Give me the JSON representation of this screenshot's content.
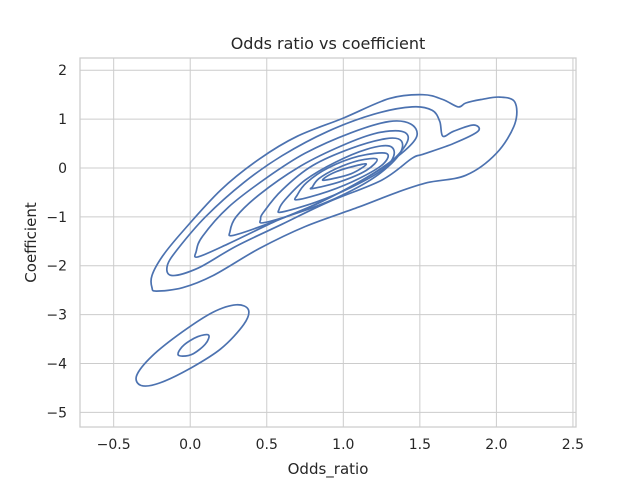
{
  "chart_data": {
    "type": "kde-contour",
    "title": "Odds ratio vs coefficient",
    "xlabel": "Odds_ratio",
    "ylabel": "Coefficient",
    "xlim": [
      -0.72,
      2.52
    ],
    "ylim": [
      -5.3,
      2.25
    ],
    "x_ticks": [
      -0.5,
      0.0,
      0.5,
      1.0,
      1.5,
      2.0,
      2.5
    ],
    "x_tick_labels": [
      "−0.5",
      "0.0",
      "0.5",
      "1.0",
      "1.5",
      "2.0",
      "2.5"
    ],
    "y_ticks": [
      2,
      1,
      0,
      -1,
      -2,
      -3,
      -4,
      -5
    ],
    "y_tick_labels": [
      "2",
      "1",
      "0",
      "−1",
      "−2",
      "−3",
      "−4",
      "−5"
    ],
    "grid": true,
    "line_color": "#4c72b0",
    "contours": [
      {
        "level": 1,
        "points": [
          [
            -0.22,
            -2.52
          ],
          [
            -0.05,
            -2.45
          ],
          [
            0.15,
            -2.2
          ],
          [
            0.45,
            -1.65
          ],
          [
            0.75,
            -1.2
          ],
          [
            1.1,
            -0.8
          ],
          [
            1.35,
            -0.5
          ],
          [
            1.55,
            -0.3
          ],
          [
            1.8,
            -0.15
          ],
          [
            2.0,
            0.3
          ],
          [
            2.12,
            0.9
          ],
          [
            2.12,
            1.35
          ],
          [
            2.02,
            1.45
          ],
          [
            1.9,
            1.4
          ],
          [
            1.8,
            1.33
          ],
          [
            1.75,
            1.25
          ],
          [
            1.65,
            1.4
          ],
          [
            1.52,
            1.5
          ],
          [
            1.3,
            1.42
          ],
          [
            1.0,
            1.02
          ],
          [
            0.7,
            0.65
          ],
          [
            0.45,
            0.18
          ],
          [
            0.2,
            -0.45
          ],
          [
            -0.05,
            -1.3
          ],
          [
            -0.18,
            -1.8
          ],
          [
            -0.25,
            -2.2
          ],
          [
            -0.25,
            -2.45
          ]
        ]
      },
      {
        "level": 2,
        "points": [
          [
            -0.12,
            -2.2
          ],
          [
            0.05,
            -2.05
          ],
          [
            0.3,
            -1.6
          ],
          [
            0.6,
            -1.15
          ],
          [
            0.9,
            -0.7
          ],
          [
            1.25,
            -0.25
          ],
          [
            1.45,
            0.2
          ],
          [
            1.52,
            0.28
          ],
          [
            1.72,
            0.5
          ],
          [
            1.88,
            0.75
          ],
          [
            1.85,
            0.88
          ],
          [
            1.72,
            0.75
          ],
          [
            1.65,
            0.65
          ],
          [
            1.63,
            0.95
          ],
          [
            1.58,
            1.18
          ],
          [
            1.45,
            1.25
          ],
          [
            1.2,
            1.1
          ],
          [
            0.9,
            0.75
          ],
          [
            0.6,
            0.25
          ],
          [
            0.35,
            -0.3
          ],
          [
            0.1,
            -1.0
          ],
          [
            -0.08,
            -1.65
          ],
          [
            -0.15,
            -2.0
          ]
        ]
      },
      {
        "level": 3,
        "points": [
          [
            0.05,
            -1.82
          ],
          [
            0.25,
            -1.55
          ],
          [
            0.55,
            -1.1
          ],
          [
            0.85,
            -0.7
          ],
          [
            1.15,
            -0.2
          ],
          [
            1.38,
            0.3
          ],
          [
            1.48,
            0.65
          ],
          [
            1.44,
            0.9
          ],
          [
            1.3,
            0.95
          ],
          [
            1.05,
            0.72
          ],
          [
            0.75,
            0.3
          ],
          [
            0.5,
            -0.2
          ],
          [
            0.25,
            -0.8
          ],
          [
            0.08,
            -1.4
          ],
          [
            0.04,
            -1.7
          ]
        ]
      },
      {
        "level": 4,
        "points": [
          [
            0.28,
            -1.38
          ],
          [
            0.5,
            -1.15
          ],
          [
            0.78,
            -0.8
          ],
          [
            1.05,
            -0.38
          ],
          [
            1.3,
            0.1
          ],
          [
            1.42,
            0.55
          ],
          [
            1.38,
            0.75
          ],
          [
            1.2,
            0.7
          ],
          [
            0.95,
            0.4
          ],
          [
            0.7,
            0.0
          ],
          [
            0.45,
            -0.55
          ],
          [
            0.3,
            -1.0
          ],
          [
            0.26,
            -1.3
          ]
        ]
      },
      {
        "level": 5,
        "points": [
          [
            0.48,
            -1.12
          ],
          [
            0.7,
            -0.92
          ],
          [
            0.95,
            -0.62
          ],
          [
            1.2,
            -0.2
          ],
          [
            1.36,
            0.25
          ],
          [
            1.38,
            0.55
          ],
          [
            1.28,
            0.6
          ],
          [
            1.05,
            0.4
          ],
          [
            0.8,
            0.05
          ],
          [
            0.6,
            -0.45
          ],
          [
            0.48,
            -0.9
          ],
          [
            0.46,
            -1.05
          ]
        ]
      },
      {
        "level": 6,
        "points": [
          [
            0.6,
            -0.9
          ],
          [
            0.82,
            -0.7
          ],
          [
            1.05,
            -0.4
          ],
          [
            1.25,
            -0.05
          ],
          [
            1.33,
            0.25
          ],
          [
            1.3,
            0.45
          ],
          [
            1.15,
            0.38
          ],
          [
            0.95,
            0.12
          ],
          [
            0.75,
            -0.25
          ],
          [
            0.62,
            -0.65
          ],
          [
            0.58,
            -0.85
          ]
        ]
      },
      {
        "level": 7,
        "points": [
          [
            0.7,
            -0.65
          ],
          [
            0.9,
            -0.48
          ],
          [
            1.1,
            -0.22
          ],
          [
            1.26,
            0.08
          ],
          [
            1.28,
            0.3
          ],
          [
            1.1,
            0.24
          ],
          [
            0.9,
            0.0
          ],
          [
            0.76,
            -0.3
          ],
          [
            0.7,
            -0.55
          ]
        ]
      },
      {
        "level": 8,
        "points": [
          [
            0.8,
            -0.42
          ],
          [
            0.98,
            -0.28
          ],
          [
            1.15,
            -0.05
          ],
          [
            1.22,
            0.18
          ],
          [
            1.1,
            0.15
          ],
          [
            0.95,
            -0.02
          ],
          [
            0.84,
            -0.22
          ],
          [
            0.8,
            -0.38
          ]
        ]
      },
      {
        "level": 9,
        "points": [
          [
            0.88,
            -0.25
          ],
          [
            1.05,
            -0.12
          ],
          [
            1.15,
            0.08
          ],
          [
            1.05,
            0.02
          ],
          [
            0.95,
            -0.08
          ],
          [
            0.88,
            -0.2
          ]
        ]
      },
      {
        "level": 10,
        "points": [
          [
            -0.32,
            -4.45
          ],
          [
            -0.2,
            -4.4
          ],
          [
            0.0,
            -4.1
          ],
          [
            0.2,
            -3.7
          ],
          [
            0.35,
            -3.2
          ],
          [
            0.38,
            -2.9
          ],
          [
            0.3,
            -2.8
          ],
          [
            0.15,
            -2.95
          ],
          [
            -0.05,
            -3.35
          ],
          [
            -0.25,
            -3.85
          ],
          [
            -0.35,
            -4.25
          ]
        ]
      },
      {
        "level": 11,
        "points": [
          [
            -0.05,
            -3.85
          ],
          [
            0.02,
            -3.8
          ],
          [
            0.1,
            -3.6
          ],
          [
            0.12,
            -3.42
          ],
          [
            0.05,
            -3.45
          ],
          [
            -0.04,
            -3.62
          ],
          [
            -0.08,
            -3.8
          ]
        ]
      }
    ]
  }
}
